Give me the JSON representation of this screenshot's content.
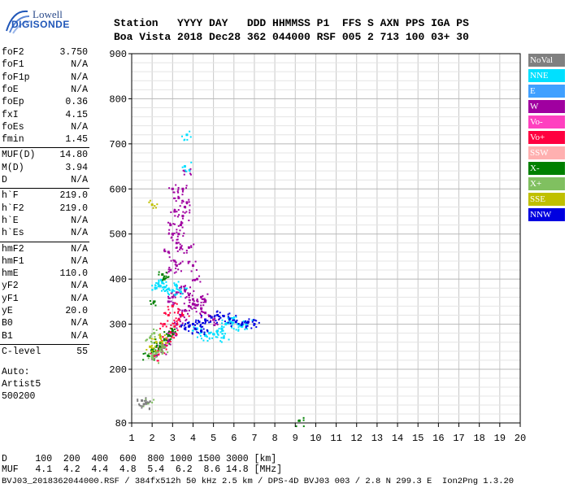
{
  "logo": {
    "line1": "Lowell",
    "line2": "DIGISONDE"
  },
  "header": {
    "line1": "Station   YYYY DAY   DDD HHMMSS P1  FFS S AXN PPS IGA PS",
    "line2": "Boa Vista 2018 Dec28 362 044000 RSF 005 2 713 100 03+ 30"
  },
  "params": [
    {
      "name": "foF2",
      "value": "3.750"
    },
    {
      "name": "foF1",
      "value": "N/A"
    },
    {
      "name": "foF1p",
      "value": "N/A"
    },
    {
      "name": "foE",
      "value": "N/A"
    },
    {
      "name": "foEp",
      "value": "0.36"
    },
    {
      "name": "fxI",
      "value": "4.15"
    },
    {
      "name": "foEs",
      "value": "N/A"
    },
    {
      "name": "fmin",
      "value": "1.45"
    },
    {
      "name": "MUF(D)",
      "value": "14.80"
    },
    {
      "name": "M(D)",
      "value": "3.94"
    },
    {
      "name": "D",
      "value": "N/A"
    },
    {
      "name": "h`F",
      "value": "219.0"
    },
    {
      "name": "h`F2",
      "value": "219.0"
    },
    {
      "name": "h`E",
      "value": "N/A"
    },
    {
      "name": "h`Es",
      "value": "N/A"
    },
    {
      "name": "hmF2",
      "value": "N/A"
    },
    {
      "name": "hmF1",
      "value": "N/A"
    },
    {
      "name": "hmE",
      "value": "110.0"
    },
    {
      "name": "yF2",
      "value": "N/A"
    },
    {
      "name": "yF1",
      "value": "N/A"
    },
    {
      "name": "yE",
      "value": "20.0"
    },
    {
      "name": "B0",
      "value": "N/A"
    },
    {
      "name": "B1",
      "value": "N/A"
    },
    {
      "name": "C-level",
      "value": "55"
    }
  ],
  "auto": {
    "line1": "Auto:",
    "line2": "Artist5",
    "line3": "500200"
  },
  "dmuf": {
    "d_line": "D     100  200  400  600  800 1000 1500 3000 [km]",
    "muf_line": "MUF   4.1  4.2  4.4  4.8  5.4  6.2  8.6 14.8 [MHz]"
  },
  "footer": "BVJ03_2018362044000.RSF / 384fx512h 50 kHz 2.5 km / DPS-4D BVJ03 003 / 2.8 N 299.3 E  Ion2Png 1.3.20",
  "legend": [
    {
      "label": "NoVal",
      "color": "#808080"
    },
    {
      "label": "NNE",
      "color": "#00e0ff"
    },
    {
      "label": "E",
      "color": "#40a0ff"
    },
    {
      "label": "W",
      "color": "#a000a0"
    },
    {
      "label": "Vo-",
      "color": "#ff40c0"
    },
    {
      "label": "Vo+",
      "color": "#ff0040"
    },
    {
      "label": "SSW",
      "color": "#ffb0b0"
    },
    {
      "label": "X-",
      "color": "#008000"
    },
    {
      "label": "X+",
      "color": "#80c060"
    },
    {
      "label": "SSE",
      "color": "#c0c000"
    },
    {
      "label": "NNW",
      "color": "#0000e0"
    }
  ],
  "chart_data": {
    "type": "scatter",
    "x_ticks": [
      1,
      2,
      3,
      4,
      5,
      6,
      7,
      8,
      9,
      10,
      11,
      12,
      13,
      14,
      15,
      16,
      17,
      18,
      19,
      20
    ],
    "y_ticks": [
      80,
      200,
      300,
      400,
      500,
      600,
      700,
      800,
      900
    ],
    "xlim": [
      1,
      20
    ],
    "ylim": [
      80,
      900
    ],
    "grid": true,
    "series": [
      {
        "color_ref": "W",
        "points": [
          [
            2.2,
            232
          ],
          [
            2.4,
            245
          ],
          [
            2.6,
            250
          ],
          [
            2.8,
            262
          ],
          [
            3.0,
            280
          ],
          [
            3.2,
            300
          ],
          [
            3.4,
            320
          ],
          [
            3.6,
            330
          ],
          [
            3.8,
            340
          ],
          [
            4.0,
            345
          ],
          [
            4.2,
            342
          ],
          [
            4.4,
            335
          ],
          [
            4.6,
            325
          ],
          [
            4.8,
            318
          ],
          [
            5.0,
            310
          ],
          [
            2.8,
            350
          ],
          [
            3.0,
            360
          ],
          [
            3.2,
            370
          ],
          [
            3.4,
            380
          ],
          [
            3.6,
            375
          ],
          [
            3.8,
            365
          ],
          [
            4.0,
            355
          ],
          [
            2.9,
            420
          ],
          [
            3.1,
            440
          ],
          [
            3.2,
            480
          ],
          [
            3.3,
            500
          ],
          [
            3.4,
            520
          ],
          [
            3.5,
            540
          ],
          [
            3.6,
            560
          ],
          [
            3.7,
            570
          ],
          [
            2.8,
            460
          ],
          [
            3.0,
            500
          ],
          [
            3.1,
            550
          ],
          [
            3.3,
            580
          ],
          [
            3.5,
            600
          ],
          [
            3.6,
            640
          ],
          [
            3.4,
            470
          ],
          [
            3.8,
            470
          ],
          [
            4.0,
            430
          ],
          [
            4.2,
            400
          ],
          [
            3.0,
            600
          ],
          [
            2.9,
            520
          ],
          [
            3.2,
            430
          ],
          [
            4.4,
            360
          ],
          [
            4.6,
            350
          ]
        ]
      },
      {
        "color_ref": "NNE",
        "points": [
          [
            2.2,
            380
          ],
          [
            2.4,
            385
          ],
          [
            2.6,
            382
          ],
          [
            2.8,
            378
          ],
          [
            3.0,
            375
          ],
          [
            2.3,
            390
          ],
          [
            2.5,
            392
          ],
          [
            3.2,
            385
          ],
          [
            3.4,
            372
          ],
          [
            4.6,
            275
          ],
          [
            4.8,
            280
          ],
          [
            5.0,
            278
          ],
          [
            5.2,
            285
          ],
          [
            5.4,
            290
          ],
          [
            5.6,
            300
          ],
          [
            5.8,
            305
          ],
          [
            6.0,
            310
          ],
          [
            6.2,
            300
          ],
          [
            6.4,
            295
          ],
          [
            6.6,
            300
          ],
          [
            4.2,
            290
          ],
          [
            4.4,
            282
          ],
          [
            5.5,
            270
          ],
          [
            3.6,
            650
          ],
          [
            3.7,
            720
          ]
        ]
      },
      {
        "color_ref": "NNW",
        "points": [
          [
            4.0,
            300
          ],
          [
            4.3,
            305
          ],
          [
            4.6,
            310
          ],
          [
            4.9,
            315
          ],
          [
            5.2,
            320
          ],
          [
            5.5,
            318
          ],
          [
            5.8,
            312
          ],
          [
            6.1,
            305
          ],
          [
            6.4,
            300
          ],
          [
            6.7,
            305
          ],
          [
            7.0,
            300
          ],
          [
            3.8,
            295
          ],
          [
            4.1,
            290
          ],
          [
            4.4,
            285
          ],
          [
            3.6,
            290
          ]
        ]
      },
      {
        "color_ref": "Vo+",
        "points": [
          [
            2.1,
            230
          ],
          [
            2.3,
            240
          ],
          [
            2.5,
            255
          ],
          [
            2.7,
            268
          ],
          [
            2.9,
            282
          ],
          [
            3.1,
            295
          ],
          [
            3.3,
            310
          ],
          [
            3.5,
            320
          ],
          [
            2.6,
            300
          ],
          [
            2.8,
            320
          ],
          [
            3.0,
            340
          ]
        ]
      },
      {
        "color_ref": "X-",
        "points": [
          [
            1.8,
            230
          ],
          [
            2.0,
            240
          ],
          [
            2.2,
            250
          ],
          [
            2.4,
            258
          ],
          [
            2.6,
            265
          ],
          [
            2.8,
            275
          ],
          [
            3.0,
            285
          ],
          [
            9.2,
            85
          ],
          [
            2.1,
            350
          ],
          [
            2.5,
            410
          ],
          [
            2.6,
            400
          ]
        ]
      },
      {
        "color_ref": "X+",
        "points": [
          [
            2.0,
            225
          ],
          [
            2.2,
            235
          ],
          [
            2.4,
            245
          ],
          [
            2.6,
            250
          ],
          [
            1.9,
            270
          ],
          [
            2.1,
            280
          ],
          [
            2.0,
            230
          ],
          [
            1.8,
            124
          ]
        ]
      },
      {
        "color_ref": "SSE",
        "points": [
          [
            2.2,
            260
          ],
          [
            2.4,
            270
          ],
          [
            1.9,
            250
          ],
          [
            2.0,
            565
          ]
        ]
      },
      {
        "color_ref": "NoVal",
        "points": [
          [
            1.5,
            130
          ],
          [
            1.7,
            125
          ],
          [
            1.6,
            122
          ]
        ]
      }
    ]
  }
}
